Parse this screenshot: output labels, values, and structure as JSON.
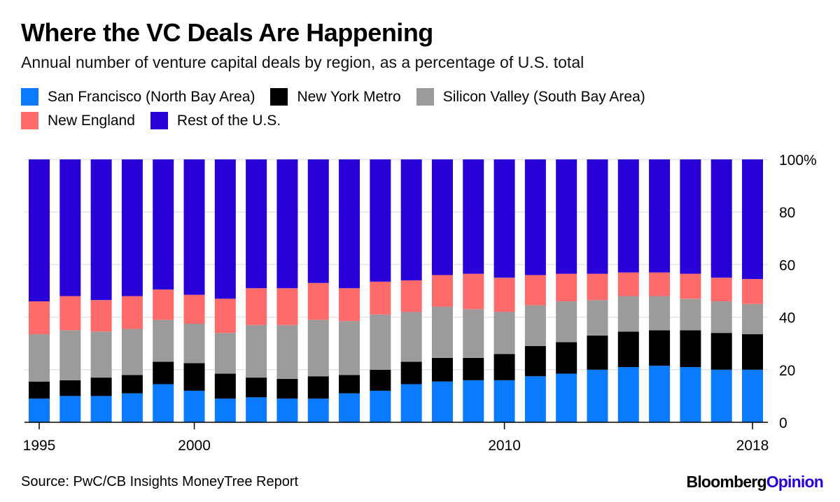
{
  "header": {
    "title": "Where the VC Deals Are Happening",
    "subtitle": "Annual number of venture capital deals by region, as a percentage of U.S. total"
  },
  "footer": {
    "source": "Source: PwC/CB Insights MoneyTree Report",
    "logo_part1": "Bloomberg",
    "logo_part2": "Opinion"
  },
  "chart_data": {
    "type": "bar",
    "stacked": true,
    "title": "Where the VC Deals Are Happening",
    "subtitle": "Annual number of venture capital deals by region, as a percentage of U.S. total",
    "xlabel": "",
    "ylabel": "",
    "ylim": [
      0,
      100
    ],
    "yticks": [
      0,
      20,
      40,
      60,
      80,
      100
    ],
    "ytick_labels": [
      "0",
      "20",
      "40",
      "60",
      "80",
      "100%"
    ],
    "xtick_labels": [
      "1995",
      "2000",
      "2010",
      "2018"
    ],
    "legend_position": "top-left",
    "grid": true,
    "categories": [
      "1995",
      "1996",
      "1997",
      "1998",
      "1999",
      "2000",
      "2001",
      "2002",
      "2003",
      "2004",
      "2005",
      "2006",
      "2007",
      "2008",
      "2009",
      "2010",
      "2011",
      "2012",
      "2013",
      "2014",
      "2015",
      "2016",
      "2017",
      "2018"
    ],
    "series": [
      {
        "name": "San Francisco (North Bay Area)",
        "color": "#0a7bff",
        "values": [
          9,
          10,
          10,
          11,
          14.5,
          12,
          9,
          9.5,
          9,
          9,
          11,
          12,
          14.5,
          15.5,
          16,
          16,
          17.5,
          18.5,
          20,
          21,
          21.5,
          21,
          20,
          20
        ]
      },
      {
        "name": "New York Metro",
        "color": "#000000",
        "values": [
          6.5,
          6,
          7,
          7,
          8.5,
          10.5,
          9.5,
          7.5,
          7.5,
          8.5,
          7,
          8,
          8.5,
          9,
          8.5,
          10,
          11.5,
          12,
          13,
          13.5,
          13.5,
          14,
          14,
          13.5
        ]
      },
      {
        "name": "Silicon Valley (South Bay Area)",
        "color": "#9b9b9b",
        "values": [
          18,
          19,
          17.5,
          17.5,
          16,
          15,
          15.5,
          20,
          20.5,
          21.5,
          20.5,
          21,
          19,
          19.5,
          18.5,
          16,
          15.5,
          15.5,
          13.5,
          13.5,
          13,
          12,
          12,
          11.5
        ]
      },
      {
        "name": "New England",
        "color": "#ff6b6b",
        "values": [
          12.5,
          13,
          12,
          12.5,
          11.5,
          11,
          13,
          14,
          14,
          14,
          12.5,
          12.5,
          12,
          12,
          13.5,
          13,
          11.5,
          10.5,
          10,
          9,
          9,
          9.5,
          9,
          9.5
        ]
      },
      {
        "name": "Rest of the U.S.",
        "color": "#2800d7",
        "values": [
          54,
          52,
          53.5,
          52,
          49.5,
          51.5,
          53,
          49,
          49,
          47,
          49,
          46.5,
          46,
          44,
          43.5,
          45,
          44,
          43.5,
          43.5,
          43,
          43,
          43.5,
          45,
          45.5
        ]
      }
    ]
  }
}
